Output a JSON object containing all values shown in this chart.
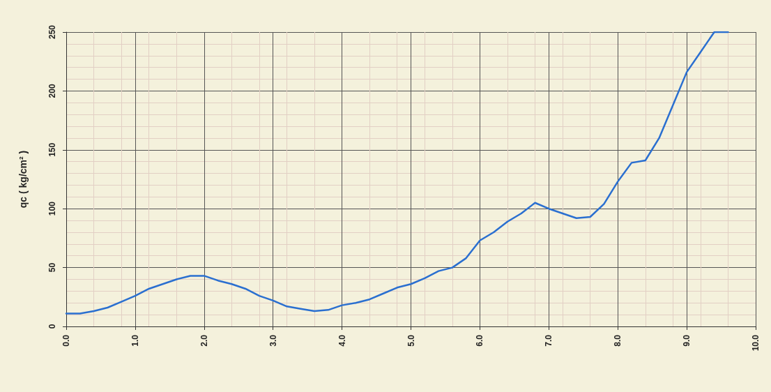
{
  "chart_data": {
    "type": "line",
    "ylabel": "qc ( kg/cm² )",
    "x": [
      0,
      0.2,
      0.4,
      0.6,
      0.8,
      1.0,
      1.2,
      1.4,
      1.6,
      1.8,
      2.0,
      2.2,
      2.4,
      2.6,
      2.8,
      3.0,
      3.2,
      3.4,
      3.6,
      3.8,
      4.0,
      4.2,
      4.4,
      4.6,
      4.8,
      5.0,
      5.2,
      5.4,
      5.6,
      5.8,
      6.0,
      6.2,
      6.4,
      6.6,
      6.8,
      7.0,
      7.2,
      7.4,
      7.6,
      7.8,
      8.0,
      8.2,
      8.4,
      8.6,
      8.8,
      9.0,
      9.2,
      9.4,
      9.6
    ],
    "series": [
      {
        "color": "#2a6fd0",
        "values": [
          11,
          11,
          13,
          16,
          21,
          26,
          32,
          36,
          40,
          43,
          43,
          39,
          36,
          32,
          26,
          22,
          17,
          15,
          13,
          14,
          18,
          20,
          23,
          28,
          33,
          36,
          41,
          47,
          50,
          58,
          73,
          80,
          89,
          96,
          105,
          100,
          96,
          92,
          93,
          104,
          123,
          139,
          141,
          160,
          188,
          216,
          233,
          250,
          250
        ]
      }
    ],
    "xlim": [
      0,
      10
    ],
    "xticks": [
      {
        "value": 0,
        "label": "0.0"
      },
      {
        "value": 1,
        "label": "1.0"
      },
      {
        "value": 2,
        "label": "2.0"
      },
      {
        "value": 3,
        "label": "3.0"
      },
      {
        "value": 4,
        "label": "4.0"
      },
      {
        "value": 5,
        "label": "5.0"
      },
      {
        "value": 6,
        "label": "6.0"
      },
      {
        "value": 7,
        "label": "7.0"
      },
      {
        "value": 8,
        "label": "8.0"
      },
      {
        "value": 9,
        "label": "9.0"
      },
      {
        "value": 10,
        "label": "10.0"
      }
    ],
    "ylim": [
      0,
      250
    ],
    "yticks": [
      0,
      50,
      100,
      150,
      200,
      250
    ],
    "grid": true,
    "marker": "none",
    "line_style": "solid"
  }
}
